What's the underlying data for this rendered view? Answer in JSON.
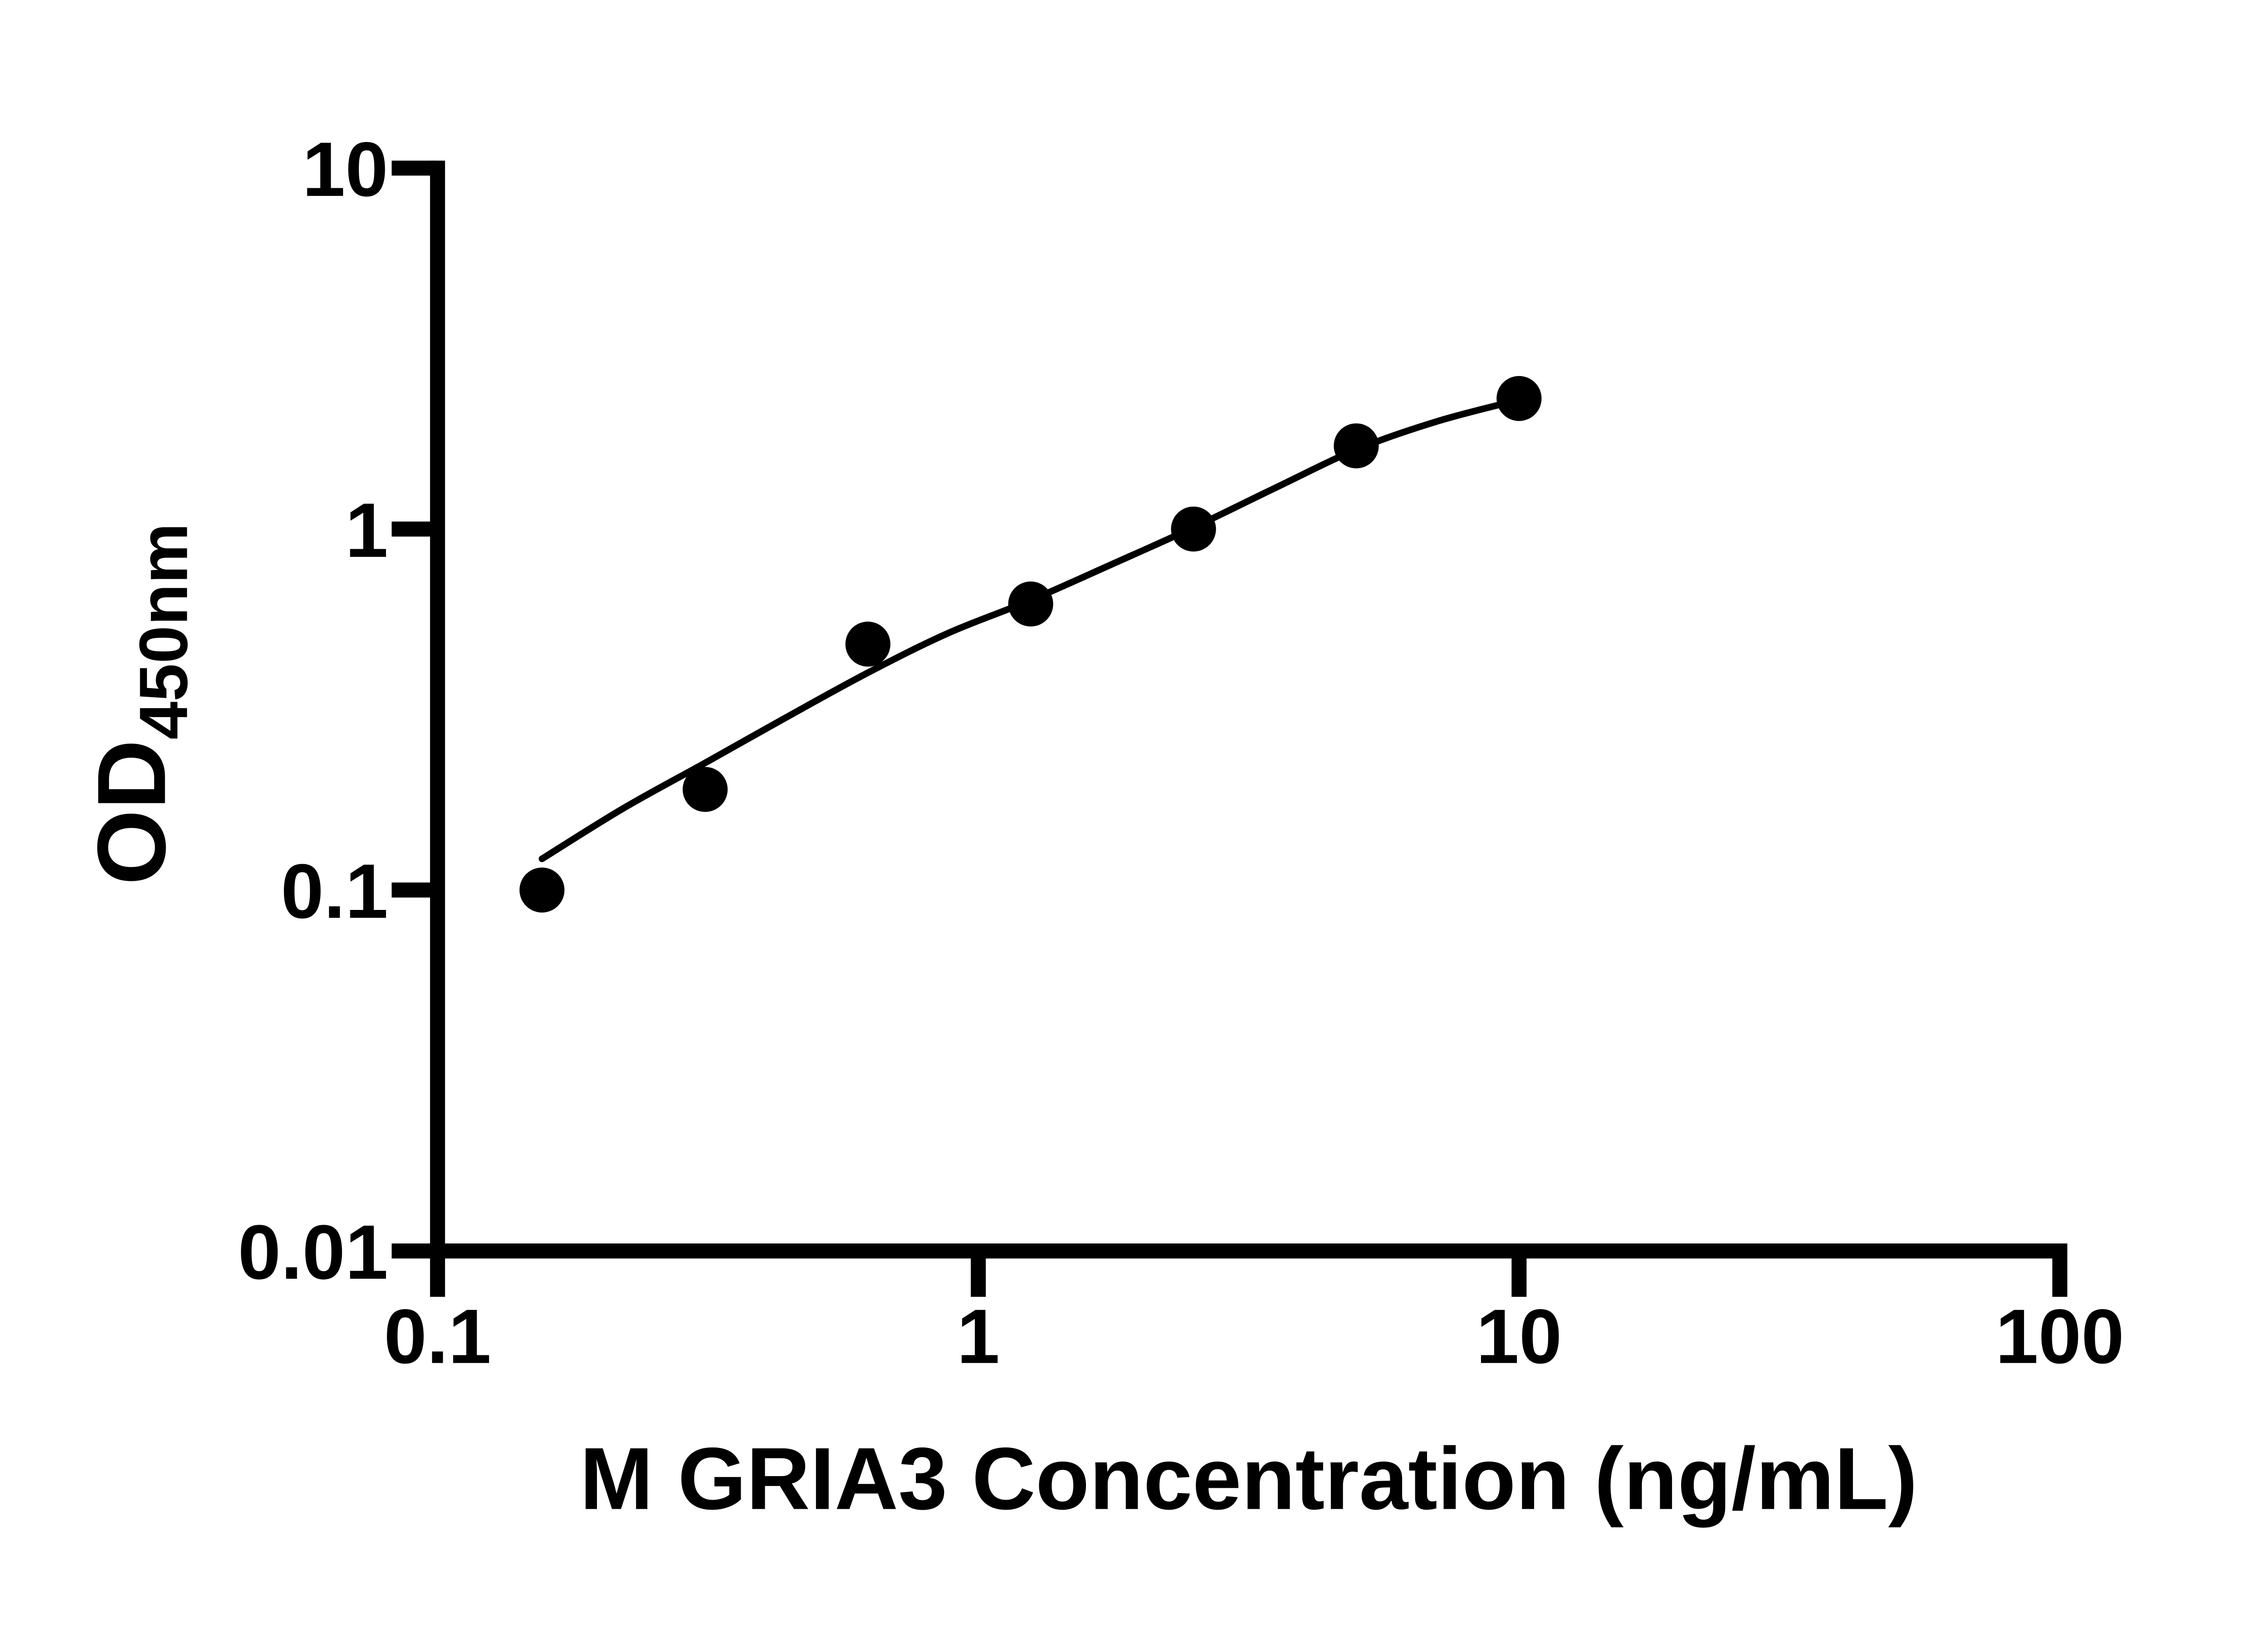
{
  "page": {
    "background_color": "#ffffff",
    "ink_color": "#000000"
  },
  "chart_data": {
    "type": "scatter",
    "title": "",
    "xlabel": "M GRIA3 Concentration (ng/mL)",
    "ylabel": {
      "main": "OD",
      "sub": "450nm"
    },
    "grid": false,
    "legend": false,
    "marker_color": "#000000",
    "line_color": "#000000",
    "axes": {
      "x": {
        "scale": "log10",
        "min": 0.1,
        "max": 100,
        "ticks": [
          {
            "value": 0.1,
            "label": "0.1"
          },
          {
            "value": 1,
            "label": "1"
          },
          {
            "value": 10,
            "label": "10"
          },
          {
            "value": 100,
            "label": "100"
          }
        ]
      },
      "y": {
        "scale": "log10",
        "min": 0.01,
        "max": 10,
        "ticks": [
          {
            "value": 10,
            "label": "10"
          },
          {
            "value": 1,
            "label": "1"
          },
          {
            "value": 0.1,
            "label": "0.1"
          },
          {
            "value": 0.01,
            "label": "0.01"
          }
        ]
      }
    },
    "series": [
      {
        "name": "standards",
        "type": "scatter",
        "marker": "filled-circle",
        "color": "#000000",
        "points": [
          [
            0.156,
            0.1
          ],
          [
            0.3125,
            0.19
          ],
          [
            0.625,
            0.48
          ],
          [
            1.25,
            0.62
          ],
          [
            2.5,
            1.0
          ],
          [
            5,
            1.7
          ],
          [
            10,
            2.3
          ]
        ]
      },
      {
        "name": "fit-curve",
        "type": "line",
        "color": "#000000",
        "points": [
          [
            0.156,
            0.122
          ],
          [
            0.22,
            0.168
          ],
          [
            0.3125,
            0.225
          ],
          [
            0.44,
            0.3
          ],
          [
            0.625,
            0.4
          ],
          [
            0.88,
            0.515
          ],
          [
            1.25,
            0.635
          ],
          [
            1.77,
            0.8
          ],
          [
            2.5,
            1.01
          ],
          [
            3.54,
            1.3
          ],
          [
            5,
            1.66
          ],
          [
            7.07,
            1.99
          ],
          [
            10,
            2.28
          ]
        ]
      }
    ]
  }
}
